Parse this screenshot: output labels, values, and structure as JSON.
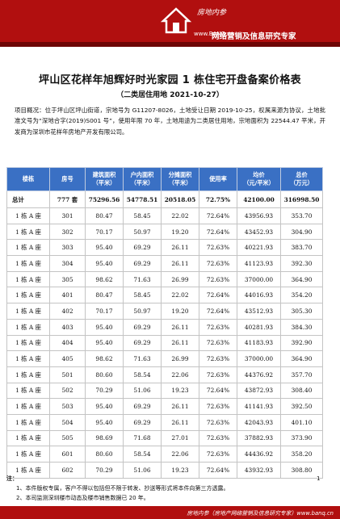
{
  "header": {
    "brand": "房地内参",
    "site": "www.BANQ.cn",
    "slogan": "网络营销及信息研究专家"
  },
  "title": "坪山区花样年旭辉好时光家园 1 栋住宅开盘备案价格表",
  "subtitle": "（二类居住用地   2021-10-27）",
  "overview": "项目概况：位于坪山区坪山街道，宗地号为 G11207-8026，土地受让日期 2019-10-25，权属来源为协议，土地批准文号为“深地合字(2019)S001 号”，使用年限 70 年，土地用途为二类居住用地，宗地面积为 22544.47 平米，开发商为深圳市花样年房地产开发有限公司。",
  "table": {
    "headers": [
      {
        "l1": "楼栋",
        "l2": ""
      },
      {
        "l1": "房号",
        "l2": ""
      },
      {
        "l1": "建筑面积",
        "l2": "（平米）"
      },
      {
        "l1": "户内面积",
        "l2": "（平米）"
      },
      {
        "l1": "分摊面积",
        "l2": "（平米）"
      },
      {
        "l1": "使用率",
        "l2": ""
      },
      {
        "l1": "均价",
        "l2": "（元/平米）"
      },
      {
        "l1": "总价",
        "l2": "（万元）"
      }
    ],
    "total": [
      "总计",
      "777 套",
      "75296.56",
      "54778.51",
      "20518.05",
      "72.75%",
      "42100.00",
      "316998.50"
    ],
    "rows": [
      [
        "1 栋 A 座",
        "301",
        "80.47",
        "58.45",
        "22.02",
        "72.64%",
        "43956.93",
        "353.70"
      ],
      [
        "1 栋 A 座",
        "302",
        "70.17",
        "50.97",
        "19.20",
        "72.64%",
        "43452.93",
        "304.90"
      ],
      [
        "1 栋 A 座",
        "303",
        "95.40",
        "69.29",
        "26.11",
        "72.63%",
        "40221.93",
        "383.70"
      ],
      [
        "1 栋 A 座",
        "304",
        "95.40",
        "69.29",
        "26.11",
        "72.63%",
        "41123.93",
        "392.30"
      ],
      [
        "1 栋 A 座",
        "305",
        "98.62",
        "71.63",
        "26.99",
        "72.63%",
        "37000.00",
        "364.90"
      ],
      [
        "1 栋 A 座",
        "401",
        "80.47",
        "58.45",
        "22.02",
        "72.64%",
        "44016.93",
        "354.20"
      ],
      [
        "1 栋 A 座",
        "402",
        "70.17",
        "50.97",
        "19.20",
        "72.64%",
        "43512.93",
        "305.30"
      ],
      [
        "1 栋 A 座",
        "403",
        "95.40",
        "69.29",
        "26.11",
        "72.63%",
        "40281.93",
        "384.30"
      ],
      [
        "1 栋 A 座",
        "404",
        "95.40",
        "69.29",
        "26.11",
        "72.63%",
        "41183.93",
        "392.90"
      ],
      [
        "1 栋 A 座",
        "405",
        "98.62",
        "71.63",
        "26.99",
        "72.63%",
        "37000.00",
        "364.90"
      ],
      [
        "1 栋 A 座",
        "501",
        "80.60",
        "58.54",
        "22.06",
        "72.63%",
        "44376.92",
        "357.70"
      ],
      [
        "1 栋 A 座",
        "502",
        "70.29",
        "51.06",
        "19.23",
        "72.64%",
        "43872.93",
        "308.40"
      ],
      [
        "1 栋 A 座",
        "503",
        "95.40",
        "69.29",
        "26.11",
        "72.63%",
        "41141.93",
        "392.50"
      ],
      [
        "1 栋 A 座",
        "504",
        "95.40",
        "69.29",
        "26.11",
        "72.63%",
        "42043.93",
        "401.10"
      ],
      [
        "1 栋 A 座",
        "505",
        "98.69",
        "71.68",
        "27.01",
        "72.63%",
        "37882.93",
        "373.90"
      ],
      [
        "1 栋 A 座",
        "601",
        "80.60",
        "58.54",
        "22.06",
        "72.63%",
        "44436.92",
        "358.20"
      ],
      [
        "1 栋 A 座",
        "602",
        "70.29",
        "51.06",
        "19.23",
        "72.64%",
        "43932.93",
        "308.80"
      ]
    ]
  },
  "notes": {
    "label": "注：",
    "items": [
      "1、本件版权专属，客户不得以包括但不限于转发、抄送等形式将本件向第三方透露。",
      "2、本司监测深圳楼市动态及楼市销售数据已 20 年。"
    ]
  },
  "page_number": "1",
  "footer": "房地内参（房地产网络营销及信息研究专家）www.banq.cn",
  "colors": {
    "banner": "#b10f0f",
    "table_header": "#3a70c4"
  }
}
